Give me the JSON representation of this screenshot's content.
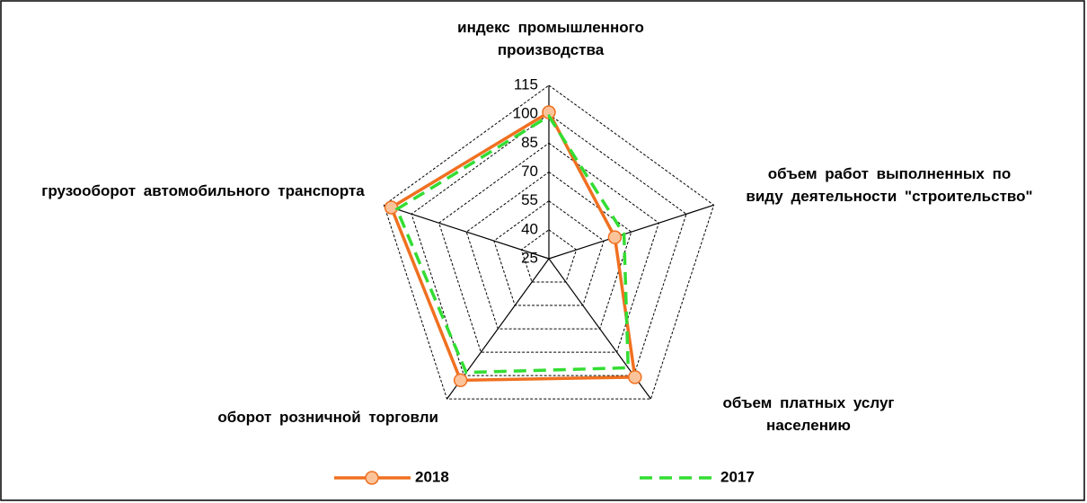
{
  "chart_data": {
    "type": "radar",
    "categories": [
      "индекс промышленного производства",
      "объем работ выполненных по виду деятельности \"строительство\"",
      "объем платных услуг населению",
      "оборот розничной торговли",
      "грузооборот автомобильного транспорта"
    ],
    "series": [
      {
        "name": "2018",
        "color": "#f07020",
        "marker_fill": "#fbc39a",
        "values": [
          101,
          61,
          101,
          103,
          111
        ]
      },
      {
        "name": "2017",
        "color": "#33dd33",
        "dashed": true,
        "values": [
          99,
          66,
          95,
          98,
          108
        ]
      }
    ],
    "rlim": [
      25,
      115
    ],
    "rticks": [
      25,
      40,
      55,
      70,
      85,
      100,
      115
    ],
    "grid": true,
    "legend": "bottom"
  }
}
